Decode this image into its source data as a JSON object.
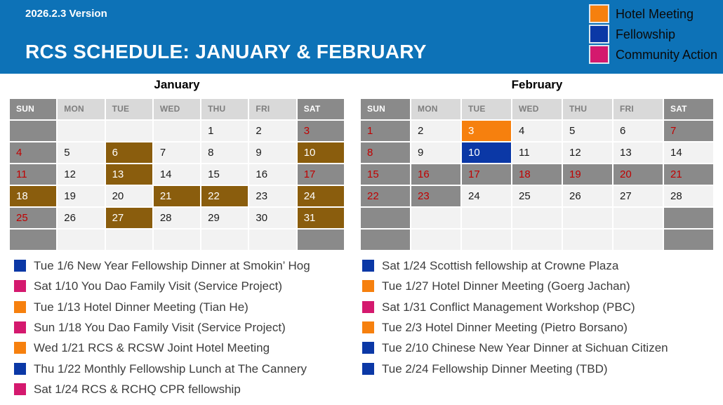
{
  "header": {
    "version": "2026.2.3 Version",
    "title": "RCS SCHEDULE: JANUARY & FEBRUARY"
  },
  "legend": {
    "items": [
      {
        "key": "hotel",
        "label": "Hotel Meeting",
        "color": "#F6800E"
      },
      {
        "key": "fellowship",
        "label": "Fellowship",
        "color": "#0B38A6"
      },
      {
        "key": "community",
        "label": "Community Action",
        "color": "#D4196E"
      }
    ]
  },
  "colors": {
    "banner_blue": "#0D72B7",
    "highlight_brown": "#8A5D0D",
    "hotel_orange": "#F6800E",
    "fellowship_blue": "#0B38A6",
    "community_pink": "#D4196E",
    "weekend_gray": "#8A8A8A",
    "weekday_header_gray": "#D9D9D9",
    "cell_light": "#F2F2F2",
    "holiday_red": "#C00000"
  },
  "calendars": [
    {
      "title": "January",
      "day_headers": [
        "SUN",
        "MON",
        "TUE",
        "WED",
        "THU",
        "FRI",
        "SAT"
      ],
      "weeks": [
        [
          {
            "day": "",
            "style": "gray"
          },
          {
            "day": "",
            "style": "light"
          },
          {
            "day": "",
            "style": "light"
          },
          {
            "day": "",
            "style": "light"
          },
          {
            "day": "1",
            "style": "normal"
          },
          {
            "day": "2",
            "style": "normal"
          },
          {
            "day": "3",
            "style": "holiday"
          }
        ],
        [
          {
            "day": "4",
            "style": "holiday"
          },
          {
            "day": "5",
            "style": "normal"
          },
          {
            "day": "6",
            "style": "brown"
          },
          {
            "day": "7",
            "style": "normal"
          },
          {
            "day": "8",
            "style": "normal"
          },
          {
            "day": "9",
            "style": "normal"
          },
          {
            "day": "10",
            "style": "brown"
          }
        ],
        [
          {
            "day": "11",
            "style": "holiday"
          },
          {
            "day": "12",
            "style": "normal"
          },
          {
            "day": "13",
            "style": "brown"
          },
          {
            "day": "14",
            "style": "normal"
          },
          {
            "day": "15",
            "style": "normal"
          },
          {
            "day": "16",
            "style": "normal"
          },
          {
            "day": "17",
            "style": "holiday"
          }
        ],
        [
          {
            "day": "18",
            "style": "brown"
          },
          {
            "day": "19",
            "style": "normal"
          },
          {
            "day": "20",
            "style": "normal"
          },
          {
            "day": "21",
            "style": "brown"
          },
          {
            "day": "22",
            "style": "brown"
          },
          {
            "day": "23",
            "style": "normal"
          },
          {
            "day": "24",
            "style": "brown"
          }
        ],
        [
          {
            "day": "25",
            "style": "holiday"
          },
          {
            "day": "26",
            "style": "normal"
          },
          {
            "day": "27",
            "style": "brown"
          },
          {
            "day": "28",
            "style": "normal"
          },
          {
            "day": "29",
            "style": "normal"
          },
          {
            "day": "30",
            "style": "normal"
          },
          {
            "day": "31",
            "style": "brown"
          }
        ],
        [
          {
            "day": "",
            "style": "gray"
          },
          {
            "day": "",
            "style": "light"
          },
          {
            "day": "",
            "style": "light"
          },
          {
            "day": "",
            "style": "light"
          },
          {
            "day": "",
            "style": "light"
          },
          {
            "day": "",
            "style": "light"
          },
          {
            "day": "",
            "style": "gray"
          }
        ]
      ]
    },
    {
      "title": "February",
      "day_headers": [
        "SUN",
        "MON",
        "TUE",
        "WED",
        "THU",
        "FRI",
        "SAT"
      ],
      "weeks": [
        [
          {
            "day": "1",
            "style": "holiday"
          },
          {
            "day": "2",
            "style": "normal"
          },
          {
            "day": "3",
            "style": "orange"
          },
          {
            "day": "4",
            "style": "normal"
          },
          {
            "day": "5",
            "style": "normal"
          },
          {
            "day": "6",
            "style": "normal"
          },
          {
            "day": "7",
            "style": "holiday"
          }
        ],
        [
          {
            "day": "8",
            "style": "holiday"
          },
          {
            "day": "9",
            "style": "normal"
          },
          {
            "day": "10",
            "style": "blue"
          },
          {
            "day": "11",
            "style": "normal"
          },
          {
            "day": "12",
            "style": "normal"
          },
          {
            "day": "13",
            "style": "normal"
          },
          {
            "day": "14",
            "style": "normal"
          }
        ],
        [
          {
            "day": "15",
            "style": "holiday"
          },
          {
            "day": "16",
            "style": "holiday"
          },
          {
            "day": "17",
            "style": "holiday"
          },
          {
            "day": "18",
            "style": "holiday"
          },
          {
            "day": "19",
            "style": "holiday"
          },
          {
            "day": "20",
            "style": "holiday"
          },
          {
            "day": "21",
            "style": "holiday"
          }
        ],
        [
          {
            "day": "22",
            "style": "holiday"
          },
          {
            "day": "23",
            "style": "holiday"
          },
          {
            "day": "24",
            "style": "normal"
          },
          {
            "day": "25",
            "style": "normal"
          },
          {
            "day": "26",
            "style": "normal"
          },
          {
            "day": "27",
            "style": "normal"
          },
          {
            "day": "28",
            "style": "normal"
          }
        ],
        [
          {
            "day": "",
            "style": "gray"
          },
          {
            "day": "",
            "style": "light"
          },
          {
            "day": "",
            "style": "light"
          },
          {
            "day": "",
            "style": "light"
          },
          {
            "day": "",
            "style": "light"
          },
          {
            "day": "",
            "style": "light"
          },
          {
            "day": "",
            "style": "gray"
          }
        ],
        [
          {
            "day": "",
            "style": "gray"
          },
          {
            "day": "",
            "style": "light"
          },
          {
            "day": "",
            "style": "light"
          },
          {
            "day": "",
            "style": "light"
          },
          {
            "day": "",
            "style": "light"
          },
          {
            "day": "",
            "style": "light"
          },
          {
            "day": "",
            "style": "gray"
          }
        ]
      ]
    }
  ],
  "event_lists": {
    "left": [
      {
        "category": "fellowship",
        "text": "Tue 1/6 New Year Fellowship Dinner at Smokin’ Hog"
      },
      {
        "category": "community",
        "text": "Sat 1/10 You Dao Family Visit (Service Project)"
      },
      {
        "category": "hotel",
        "text": "Tue 1/13 Hotel Dinner Meeting (Tian He)"
      },
      {
        "category": "community",
        "text": "Sun 1/18 You Dao Family Visit (Service Project)"
      },
      {
        "category": "hotel",
        "text": "Wed 1/21 RCS & RCSW Joint Hotel Meeting"
      },
      {
        "category": "fellowship",
        "text": "Thu 1/22 Monthly Fellowship Lunch at The Cannery"
      },
      {
        "category": "community",
        "text": "Sat 1/24 RCS & RCHQ CPR fellowship"
      }
    ],
    "right": [
      {
        "category": "fellowship",
        "text": "Sat 1/24 Scottish fellowship at Crowne Plaza"
      },
      {
        "category": "hotel",
        "text": "Tue 1/27 Hotel Dinner Meeting (Goerg Jachan)"
      },
      {
        "category": "community",
        "text": "Sat 1/31 Conflict Management Workshop (PBC)"
      },
      {
        "category": "hotel",
        "text": "Tue 2/3 Hotel Dinner Meeting (Pietro Borsano)"
      },
      {
        "category": "fellowship",
        "text": "Tue 2/10 Chinese New Year Dinner at Sichuan Citizen"
      },
      {
        "category": "fellowship",
        "text": "Tue 2/24 Fellowship Dinner Meeting (TBD)"
      }
    ]
  }
}
